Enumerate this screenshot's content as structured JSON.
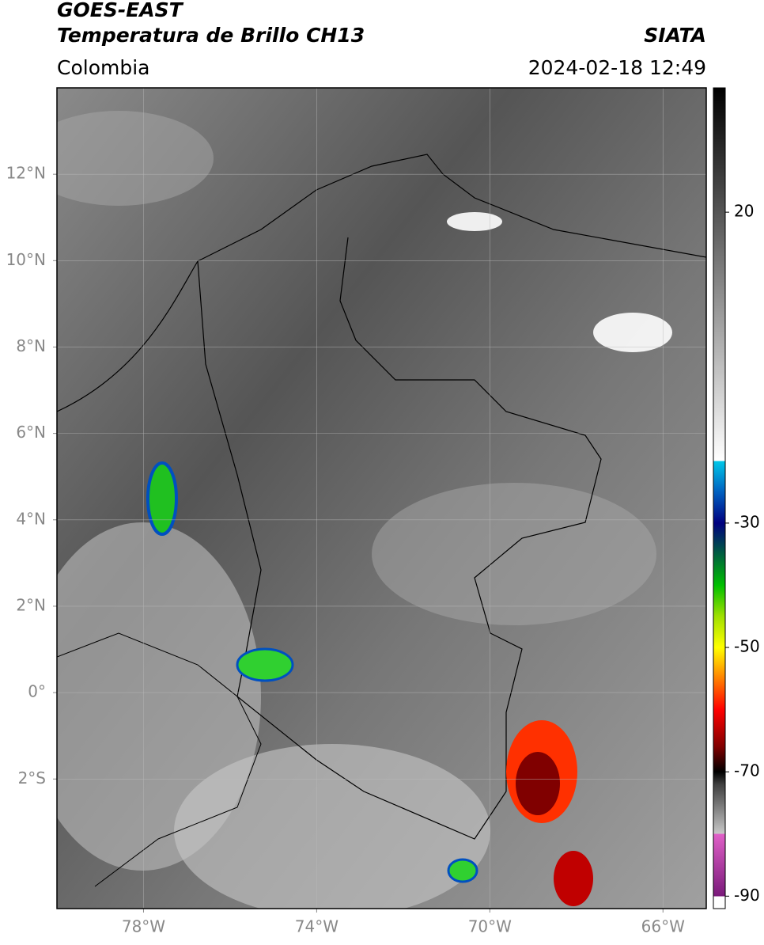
{
  "header": {
    "title": "GOES-EAST",
    "subtitle": "Temperatura de Brillo CH13",
    "source": "SIATA",
    "region": "Colombia",
    "datetime": "2024-02-18 12:49"
  },
  "map": {
    "xlim": [
      -80,
      -65
    ],
    "ylim": [
      -5,
      14
    ],
    "xticks": [
      {
        "value": -78,
        "label": "78°W"
      },
      {
        "value": -74,
        "label": "74°W"
      },
      {
        "value": -70,
        "label": "70°W"
      },
      {
        "value": -66,
        "label": "66°W"
      }
    ],
    "yticks": [
      {
        "value": 12,
        "label": "12°N"
      },
      {
        "value": 10,
        "label": "10°N"
      },
      {
        "value": 8,
        "label": "8°N"
      },
      {
        "value": 6,
        "label": "6°N"
      },
      {
        "value": 4,
        "label": "4°N"
      },
      {
        "value": 2,
        "label": "2°N"
      },
      {
        "value": 0,
        "label": "0°"
      },
      {
        "value": -2,
        "label": "2°S"
      }
    ],
    "grid": true
  },
  "colorbar": {
    "lim": [
      -92,
      40
    ],
    "ticks": [
      20,
      -30,
      -50,
      -70,
      -90
    ],
    "stops": [
      [
        -92,
        "#ffffff"
      ],
      [
        -90,
        "#ffffff"
      ],
      [
        -90,
        "#7a1a7a"
      ],
      [
        -80,
        "#e060c8"
      ],
      [
        -80,
        "#c8c8c8"
      ],
      [
        -72,
        "#404040"
      ],
      [
        -70,
        "#000000"
      ],
      [
        -66,
        "#800000"
      ],
      [
        -60,
        "#ff0000"
      ],
      [
        -55,
        "#ff8000"
      ],
      [
        -50,
        "#ffff00"
      ],
      [
        -45,
        "#a0e000"
      ],
      [
        -40,
        "#00c000"
      ],
      [
        -35,
        "#006040"
      ],
      [
        -30,
        "#000080"
      ],
      [
        -25,
        "#0060c0"
      ],
      [
        -20,
        "#00c8e8"
      ],
      [
        -20,
        "#ffffff"
      ],
      [
        40,
        "#000000"
      ]
    ]
  }
}
